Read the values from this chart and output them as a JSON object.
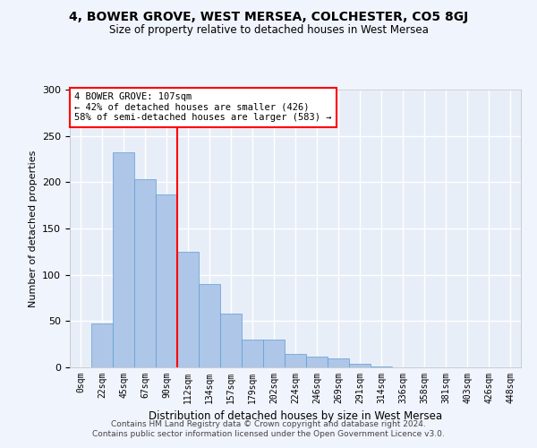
{
  "title1": "4, BOWER GROVE, WEST MERSEA, COLCHESTER, CO5 8GJ",
  "title2": "Size of property relative to detached houses in West Mersea",
  "xlabel": "Distribution of detached houses by size in West Mersea",
  "ylabel": "Number of detached properties",
  "bar_labels": [
    "0sqm",
    "22sqm",
    "45sqm",
    "67sqm",
    "90sqm",
    "112sqm",
    "134sqm",
    "157sqm",
    "179sqm",
    "202sqm",
    "224sqm",
    "246sqm",
    "269sqm",
    "291sqm",
    "314sqm",
    "336sqm",
    "358sqm",
    "381sqm",
    "403sqm",
    "426sqm",
    "448sqm"
  ],
  "bar_values": [
    0,
    47,
    232,
    203,
    187,
    125,
    90,
    58,
    30,
    30,
    15,
    12,
    10,
    4,
    1,
    0,
    0,
    0,
    0,
    0,
    0
  ],
  "bar_color": "#aec6e8",
  "bar_edge_color": "#5a9fd4",
  "reference_line_x": 5.0,
  "reference_line_label": "4 BOWER GROVE: 107sqm",
  "annotation_line1": "← 42% of detached houses are smaller (426)",
  "annotation_line2": "58% of semi-detached houses are larger (583) →",
  "ylim": [
    0,
    300
  ],
  "yticks": [
    0,
    50,
    100,
    150,
    200,
    250,
    300
  ],
  "bg_color": "#e8eef8",
  "grid_color": "#ffffff",
  "footer1": "Contains HM Land Registry data © Crown copyright and database right 2024.",
  "footer2": "Contains public sector information licensed under the Open Government Licence v3.0."
}
